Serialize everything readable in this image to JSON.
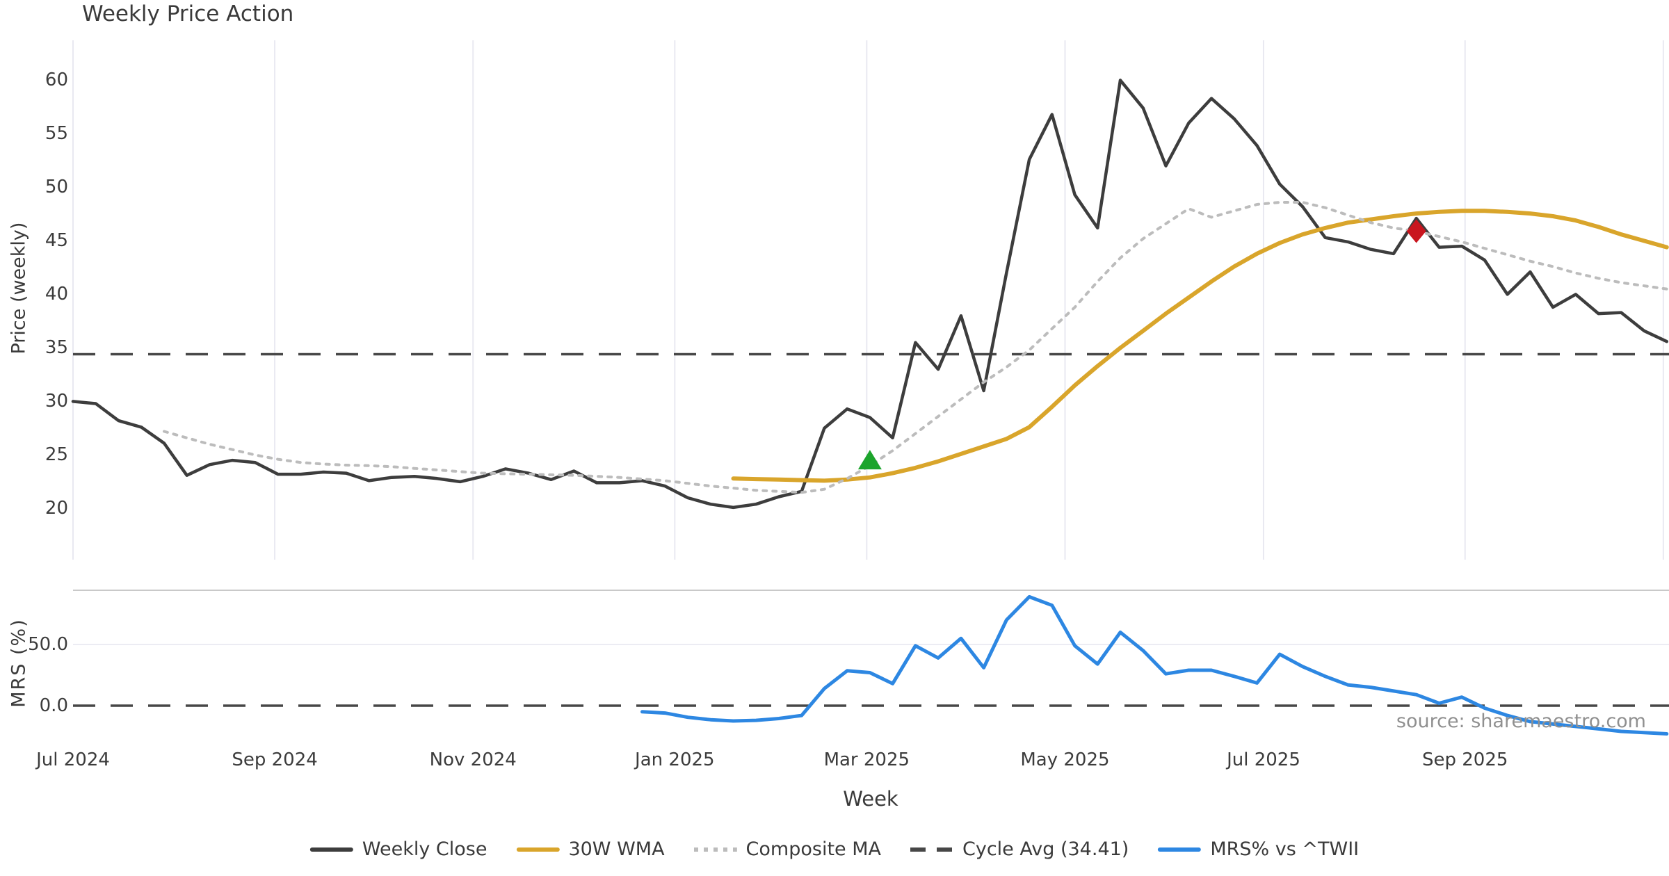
{
  "title": "Weekly Price Action",
  "source_note": "source: sharemaestro.com",
  "colors": {
    "weekly_close": "#3d3d3d",
    "wma_30w": "#d9a52b",
    "composite_ma": "#bcbcbc",
    "cycle_avg": "#474747",
    "mrs": "#2d87e2",
    "buy_marker": "#1ca42c",
    "sell_marker": "#c9151e",
    "gridline": "#e9e9f1",
    "panel_separator": "#c9c9c9"
  },
  "legend": {
    "items": [
      {
        "label": "Weekly Close",
        "swatch": "solid-dark"
      },
      {
        "label": "30W WMA",
        "swatch": "solid-gold"
      },
      {
        "label": "Composite MA",
        "swatch": "dotted-gray"
      },
      {
        "label": "Cycle Avg (34.41)",
        "swatch": "dashed-dark"
      },
      {
        "label": "MRS% vs ^TWII",
        "swatch": "solid-blue"
      }
    ]
  },
  "chart_data": {
    "type": "line",
    "title": "Weekly Price Action",
    "x_axis": {
      "label": "Week",
      "ticks": [
        {
          "label": "Jul 2024",
          "week": 0
        },
        {
          "label": "Sep 2024",
          "week": 8.86
        },
        {
          "label": "Nov 2024",
          "week": 17.57
        },
        {
          "label": "Jan 2025",
          "week": 26.43
        },
        {
          "label": "Mar 2025",
          "week": 34.86
        },
        {
          "label": "May 2025",
          "week": 43.57
        },
        {
          "label": "Jul 2025",
          "week": 52.29
        },
        {
          "label": "Sep 2025",
          "week": 61.14
        }
      ]
    },
    "panels": [
      {
        "name": "price",
        "ylabel": "Price (weekly)",
        "ylim": [
          15.5,
          64
        ],
        "yticks": [
          {
            "label": "60",
            "value": 60
          },
          {
            "label": "55",
            "value": 55
          },
          {
            "label": "50",
            "value": 50
          },
          {
            "label": "45",
            "value": 45
          },
          {
            "label": "40",
            "value": 40
          },
          {
            "label": "35",
            "value": 35
          },
          {
            "label": "30",
            "value": 30
          },
          {
            "label": "25",
            "value": 25
          },
          {
            "label": "20",
            "value": 20
          }
        ]
      },
      {
        "name": "mrs",
        "ylabel": "MRS (%)",
        "ylim": [
          -28,
          94
        ],
        "yticks": [
          {
            "label": "50.0",
            "value": 50
          },
          {
            "label": "0.0",
            "value": 0
          }
        ]
      }
    ],
    "series": [
      {
        "name": "Weekly Close",
        "panel": "price",
        "style": "solid",
        "color": "#3d3d3d",
        "width": 4.5,
        "start_week": 0,
        "values": [
          30.0,
          29.8,
          28.2,
          27.6,
          26.1,
          23.1,
          24.1,
          24.5,
          24.3,
          23.2,
          23.2,
          23.4,
          23.3,
          22.6,
          22.9,
          23.0,
          22.8,
          22.5,
          23.0,
          23.7,
          23.3,
          22.7,
          23.5,
          22.4,
          22.4,
          22.6,
          22.1,
          21.0,
          20.4,
          20.1,
          20.4,
          21.1,
          21.6,
          27.5,
          29.3,
          28.5,
          26.6,
          35.5,
          33.0,
          38.0,
          31.0,
          42.0,
          52.6,
          56.8,
          49.3,
          46.2,
          60.0,
          57.4,
          52.0,
          56.0,
          58.3,
          56.4,
          53.9,
          50.3,
          48.2,
          45.3,
          44.9,
          44.2,
          43.8,
          47.1,
          44.4,
          44.5,
          43.2,
          40.0,
          42.1,
          38.8,
          40.0,
          38.2,
          38.3,
          36.6,
          35.6
        ]
      },
      {
        "name": "30W WMA",
        "panel": "price",
        "style": "solid",
        "color": "#d9a52b",
        "width": 6,
        "start_week": 29,
        "values": [
          22.8,
          22.75,
          22.7,
          22.65,
          22.6,
          22.7,
          22.9,
          23.3,
          23.8,
          24.4,
          25.1,
          25.8,
          26.5,
          27.6,
          29.5,
          31.5,
          33.3,
          35.0,
          36.6,
          38.2,
          39.7,
          41.2,
          42.6,
          43.8,
          44.8,
          45.6,
          46.2,
          46.7,
          47.0,
          47.3,
          47.55,
          47.7,
          47.8,
          47.8,
          47.7,
          47.55,
          47.3,
          46.9,
          46.3,
          45.6,
          45.0,
          44.4
        ]
      },
      {
        "name": "Composite MA",
        "panel": "price",
        "style": "dotted",
        "color": "#bcbcbc",
        "width": 4,
        "start_week": 4,
        "values": [
          27.2,
          26.6,
          26.0,
          25.5,
          25.0,
          24.6,
          24.3,
          24.15,
          24.05,
          24.0,
          23.9,
          23.75,
          23.6,
          23.45,
          23.3,
          23.25,
          23.2,
          23.15,
          23.1,
          23.0,
          22.9,
          22.75,
          22.6,
          22.35,
          22.1,
          21.9,
          21.7,
          21.6,
          21.5,
          21.8,
          22.8,
          24.0,
          25.4,
          27.0,
          28.6,
          30.2,
          31.8,
          33.2,
          34.8,
          36.8,
          38.8,
          41.2,
          43.4,
          45.2,
          46.6,
          48.0,
          47.2,
          47.8,
          48.4,
          48.6,
          48.6,
          48.1,
          47.4,
          46.7,
          46.2,
          45.9,
          45.4,
          44.9,
          44.3,
          43.7,
          43.1,
          42.6,
          42.0,
          41.5,
          41.1,
          40.8,
          40.5
        ]
      },
      {
        "name": "MRS% vs ^TWII",
        "panel": "mrs",
        "style": "solid",
        "color": "#2d87e2",
        "width": 5,
        "start_week": 25,
        "values": [
          -5,
          -6,
          -9.5,
          -11.5,
          -12.5,
          -12,
          -10.5,
          -8,
          14,
          28.5,
          27,
          18,
          49,
          39,
          55,
          31,
          70,
          89,
          82,
          49,
          34,
          60,
          45,
          26,
          29,
          29,
          24,
          18.5,
          42,
          32,
          24,
          17,
          15,
          12,
          9,
          2,
          7,
          -2,
          -8,
          -13,
          -15,
          -17,
          -19,
          -21,
          -22,
          -23
        ]
      }
    ],
    "hlines": [
      {
        "panel": "price",
        "value": 34.41,
        "label": "Cycle Avg (34.41)",
        "style": "dashed",
        "color": "#474747"
      },
      {
        "panel": "mrs",
        "value": 0,
        "label": "zero-line",
        "style": "dashed",
        "color": "#474747"
      }
    ],
    "markers": [
      {
        "name": "buy-signal",
        "panel": "price",
        "week": 35,
        "value": 24.5,
        "shape": "triangle-up",
        "color": "#1ca42c"
      },
      {
        "name": "sell-signal",
        "panel": "price",
        "week": 59,
        "value": 45.9,
        "shape": "diamond",
        "color": "#c9151e"
      }
    ]
  }
}
